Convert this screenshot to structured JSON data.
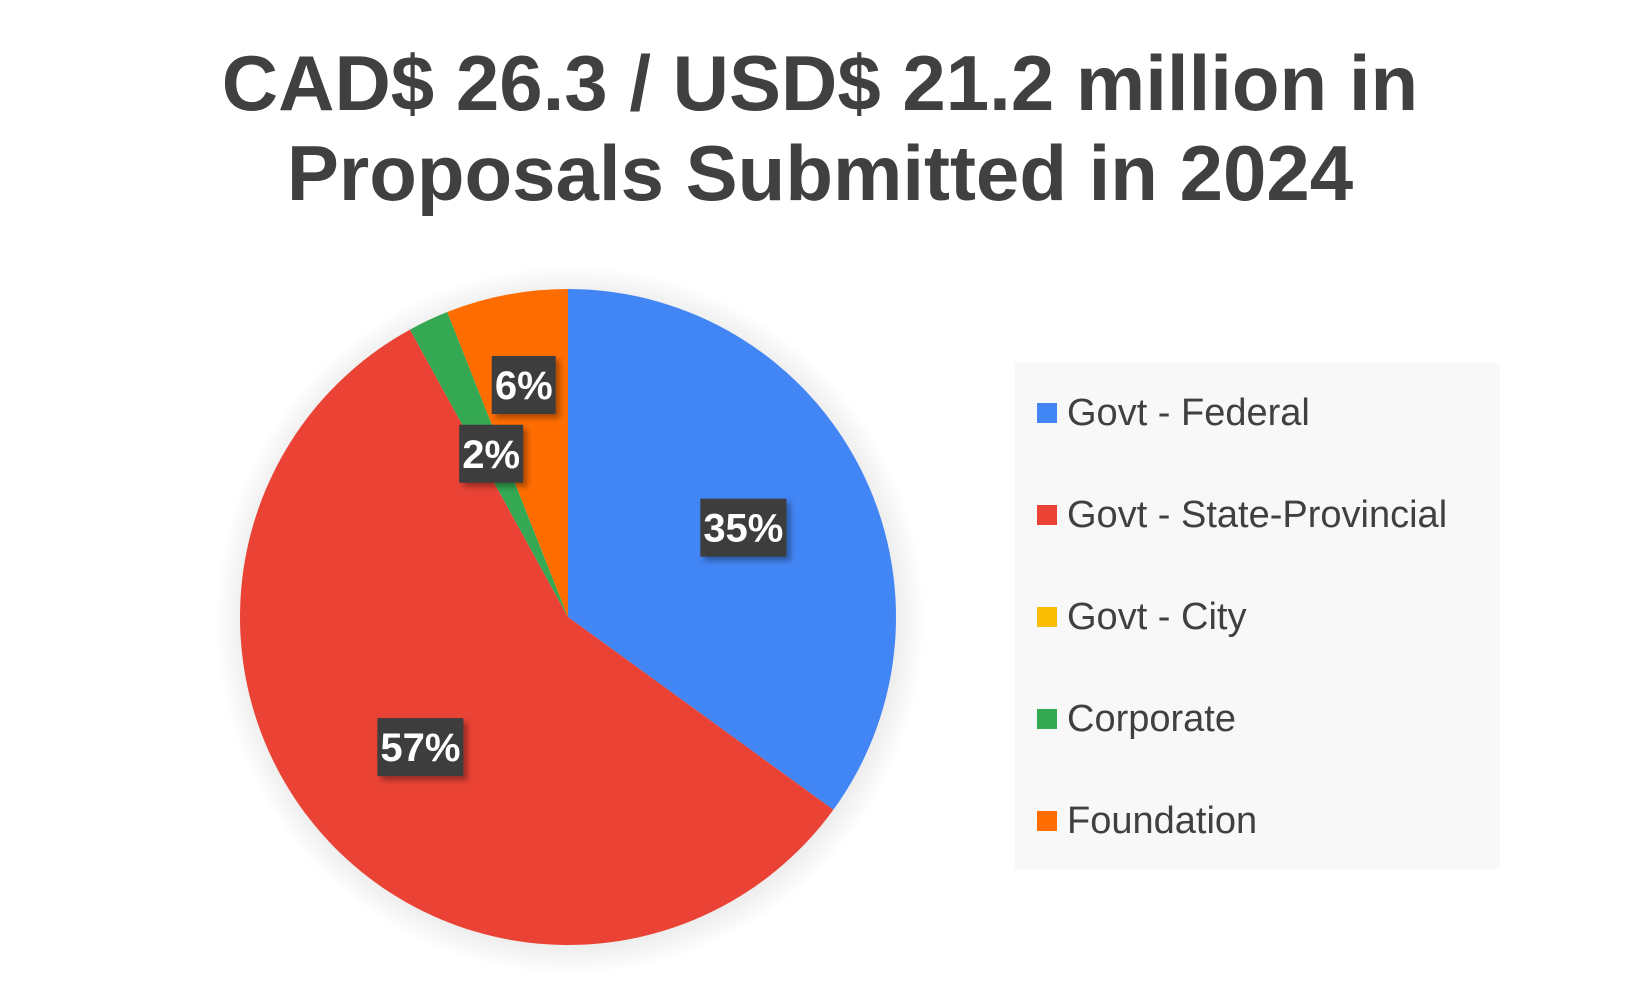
{
  "chart_data": {
    "type": "pie",
    "title": "CAD$ 26.3 / USD$ 21.2 million in Proposals Submitted in 2024",
    "title_lines": [
      "CAD$ 26.3 / USD$ 21.2 million in",
      "Proposals Submitted in 2024"
    ],
    "categories": [
      "Govt - Federal",
      "Govt - State-Provincial",
      "Govt - City",
      "Corporate",
      "Foundation"
    ],
    "values": [
      35,
      57,
      0,
      2,
      6
    ],
    "labels": [
      "35%",
      "57%",
      "",
      "2%",
      "6%"
    ],
    "colors": [
      "#4285f4",
      "#ea4335",
      "#fbbc04",
      "#34a853",
      "#ff6d01"
    ],
    "legend_position": "right",
    "data_label_style": "dark-box-white-text"
  }
}
